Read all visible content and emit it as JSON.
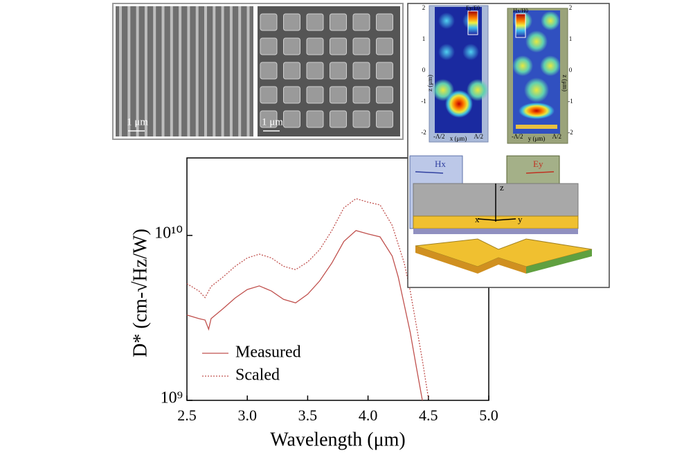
{
  "chart_data": {
    "type": "line",
    "x_label": "Wavelength (μm)",
    "y_label": "D* (cm-√Hz/W)",
    "log_y": true,
    "legend": "lower left",
    "xlim": [
      2.5,
      5.0
    ],
    "xticks": [
      2.5,
      {
        "value": 3,
        "label": "3.0"
      },
      3.5,
      {
        "value": 4,
        "label": "4.0"
      },
      4.5,
      {
        "value": 5,
        "label": "5.0"
      }
    ],
    "ylim": [
      1000000000,
      29500000000
    ],
    "yticks": [
      {
        "value": 1000000000,
        "label": "10⁹"
      },
      {
        "value": 10000000000,
        "label": "10¹⁰"
      }
    ],
    "series": [
      {
        "name": "Measured",
        "color": "#c0504d",
        "style": "solid",
        "x": [
          2.5,
          2.6,
          2.65,
          2.68,
          2.7,
          2.8,
          2.9,
          3.0,
          3.1,
          3.2,
          3.3,
          3.4,
          3.5,
          3.6,
          3.7,
          3.8,
          3.9,
          4.0,
          4.1,
          4.2,
          4.25,
          4.3,
          4.35,
          4.4,
          4.45
        ],
        "values": [
          3290000000,
          3130000000,
          3070000000,
          2700000000,
          3130000000,
          3600000000,
          4180000000,
          4700000000,
          4940000000,
          4600000000,
          4100000000,
          3900000000,
          4400000000,
          5300000000,
          6800000000,
          9200000000,
          10700000000,
          10200000000,
          9800000000,
          7500000000,
          5600000000,
          3800000000,
          2580000000,
          1590000000,
          1000000000
        ]
      },
      {
        "name": "Scaled",
        "color": "#c0504d",
        "style": "dotted",
        "x": [
          2.5,
          2.6,
          2.65,
          2.7,
          2.8,
          2.9,
          3.0,
          3.1,
          3.2,
          3.3,
          3.4,
          3.5,
          3.6,
          3.7,
          3.8,
          3.9,
          4.0,
          4.1,
          4.2,
          4.3,
          4.35,
          4.4,
          4.45,
          4.5
        ],
        "values": [
          5100000000,
          4600000000,
          4200000000,
          4900000000,
          5600000000,
          6500000000,
          7300000000,
          7700000000,
          7300000000,
          6500000000,
          6200000000,
          6900000000,
          8200000000,
          10700000000,
          14700000000,
          16700000000,
          15900000000,
          15300000000,
          11500000000,
          6800000000,
          4600000000,
          2840000000,
          1750000000,
          1030000000
        ]
      }
    ]
  },
  "insets": {
    "sem_scale_bars": [
      "1 μm",
      "1 μm"
    ],
    "field_plots": [
      {
        "colorbar": "Ey/E0",
        "ylabel": "z (μm)",
        "xlabel": "x (μm)",
        "yticks": [
          2,
          1,
          0,
          -1,
          -2
        ],
        "xticks": [
          "-Λ/2",
          "Λ/2"
        ]
      },
      {
        "colorbar": "Hx/H0",
        "ylabel": "z (μm)",
        "xlabel": "y (μm)",
        "yticks": [
          2,
          1,
          0,
          -1,
          -2
        ],
        "xticks": [
          "-Λ/2",
          "Λ/2"
        ]
      }
    ],
    "schematic_labels": [
      "Hx",
      "Ey",
      "z",
      "x",
      "y"
    ]
  }
}
